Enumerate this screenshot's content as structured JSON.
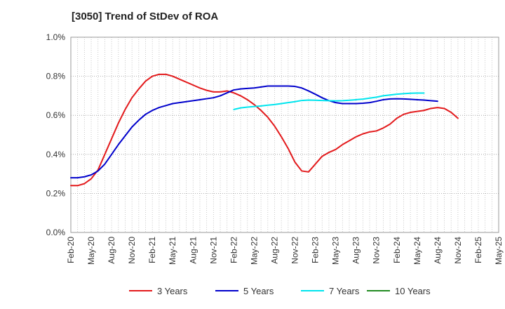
{
  "chart_data": {
    "type": "line",
    "title": "[3050]  Trend of StDev of ROA",
    "xlabel": "",
    "ylabel": "",
    "x_ticks": [
      "Feb-20",
      "May-20",
      "Aug-20",
      "Nov-20",
      "Feb-21",
      "May-21",
      "Aug-21",
      "Nov-21",
      "Feb-22",
      "May-22",
      "Aug-22",
      "Nov-22",
      "Feb-23",
      "May-23",
      "Aug-23",
      "Nov-23",
      "Feb-24",
      "May-24",
      "Aug-24",
      "Nov-24",
      "Feb-25",
      "May-25"
    ],
    "y_ticks": [
      "0.0%",
      "0.2%",
      "0.4%",
      "0.6%",
      "0.8%",
      "1.0%"
    ],
    "ylim": [
      0,
      1.0
    ],
    "y_unit": "%",
    "grid": "dotted vertical and horizontal",
    "legend_position": "bottom",
    "series": [
      {
        "name": "3 Years",
        "color": "#e31a1c",
        "start": "Feb-20",
        "values": [
          0.24,
          0.24,
          0.25,
          0.275,
          0.32,
          0.4,
          0.48,
          0.56,
          0.63,
          0.69,
          0.735,
          0.775,
          0.8,
          0.81,
          0.81,
          0.8,
          0.785,
          0.77,
          0.755,
          0.74,
          0.728,
          0.72,
          0.72,
          0.725,
          0.715,
          0.7,
          0.68,
          0.655,
          0.625,
          0.59,
          0.545,
          0.49,
          0.43,
          0.36,
          0.315,
          0.31,
          0.35,
          0.39,
          0.41,
          0.425,
          0.45,
          0.47,
          0.49,
          0.505,
          0.515,
          0.52,
          0.535,
          0.555,
          0.585,
          0.605,
          0.615,
          0.62,
          0.625,
          0.635,
          0.64,
          0.635,
          0.615,
          0.585
        ]
      },
      {
        "name": "5 Years",
        "color": "#0000cc",
        "start": "Feb-20",
        "values": [
          0.28,
          0.28,
          0.285,
          0.295,
          0.315,
          0.35,
          0.4,
          0.45,
          0.495,
          0.54,
          0.575,
          0.605,
          0.625,
          0.64,
          0.65,
          0.66,
          0.665,
          0.67,
          0.675,
          0.68,
          0.685,
          0.69,
          0.7,
          0.715,
          0.73,
          0.735,
          0.738,
          0.74,
          0.745,
          0.75,
          0.75,
          0.75,
          0.75,
          0.748,
          0.74,
          0.725,
          0.708,
          0.69,
          0.675,
          0.665,
          0.66,
          0.66,
          0.66,
          0.662,
          0.665,
          0.672,
          0.68,
          0.684,
          0.685,
          0.684,
          0.682,
          0.68,
          0.678,
          0.675,
          0.672
        ]
      },
      {
        "name": "7 Years",
        "color": "#00e5ee",
        "start": "Feb-22",
        "values": [
          0.63,
          0.638,
          0.642,
          0.645,
          0.648,
          0.652,
          0.655,
          0.66,
          0.665,
          0.67,
          0.676,
          0.678,
          0.677,
          0.676,
          0.675,
          0.674,
          0.675,
          0.677,
          0.68,
          0.683,
          0.688,
          0.693,
          0.7,
          0.704,
          0.708,
          0.711,
          0.713,
          0.714,
          0.714
        ]
      },
      {
        "name": "10 Years",
        "color": "#228b22",
        "start": "Feb-20",
        "values": []
      }
    ]
  }
}
